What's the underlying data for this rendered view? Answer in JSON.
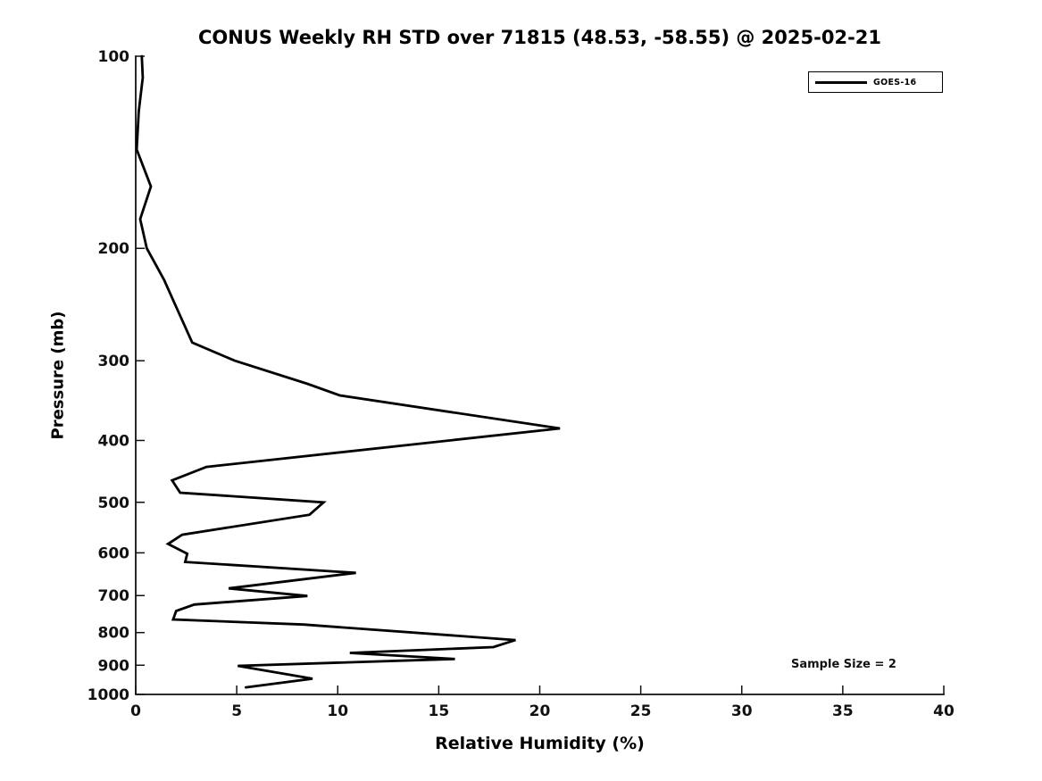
{
  "title": "CONUS Weekly RH STD over 71815 (48.53, -58.55) @ 2025-02-21",
  "axes": {
    "x": {
      "label": "Relative Humidity (%)",
      "min": 0,
      "max": 40,
      "ticks": [
        0,
        5,
        10,
        15,
        20,
        25,
        30,
        35,
        40
      ]
    },
    "y": {
      "label": "Pressure (mb)",
      "scale": "log",
      "min": 100,
      "max": 1000,
      "ticks": [
        100,
        200,
        300,
        400,
        500,
        600,
        700,
        800,
        900,
        1000
      ]
    }
  },
  "legend": {
    "position": "upper right",
    "entries": [
      {
        "label": "GOES-16",
        "color": "#000000"
      }
    ]
  },
  "annotation": {
    "sample_size": "Sample Size = 2"
  },
  "chart_data": {
    "type": "line",
    "title": "CONUS Weekly RH STD over 71815 (48.53, -58.55) @ 2025-02-21",
    "xlabel": "Relative Humidity (%)",
    "ylabel": "Pressure (mb)",
    "xlim": [
      0,
      40
    ],
    "y_scale": "log",
    "ylim": [
      1000,
      100
    ],
    "grid": false,
    "legend_position": "upper right",
    "line_color": "#000000",
    "line_width": 2.8,
    "series": [
      {
        "name": "GOES-16",
        "color": "#000000",
        "points_format": "[rh_std_percent, pressure_mb]",
        "points": [
          [
            0.3,
            100
          ],
          [
            0.35,
            108
          ],
          [
            0.15,
            122
          ],
          [
            0.05,
            140
          ],
          [
            0.75,
            160
          ],
          [
            0.22,
            180
          ],
          [
            0.55,
            200
          ],
          [
            1.4,
            224
          ],
          [
            1.9,
            243
          ],
          [
            2.8,
            281
          ],
          [
            4.9,
            300
          ],
          [
            8.5,
            326
          ],
          [
            10.1,
            340
          ],
          [
            21.0,
            383
          ],
          [
            3.5,
            440
          ],
          [
            1.8,
            462
          ],
          [
            2.2,
            483
          ],
          [
            9.3,
            500
          ],
          [
            8.6,
            523
          ],
          [
            2.3,
            562
          ],
          [
            1.6,
            581
          ],
          [
            2.55,
            602
          ],
          [
            2.45,
            620
          ],
          [
            10.9,
            645
          ],
          [
            4.6,
            682
          ],
          [
            8.5,
            701
          ],
          [
            2.9,
            723
          ],
          [
            2.0,
            740
          ],
          [
            1.85,
            763
          ],
          [
            8.3,
            777
          ],
          [
            18.8,
            822
          ],
          [
            17.7,
            843
          ],
          [
            10.6,
            861
          ],
          [
            15.8,
            880
          ],
          [
            5.05,
            902
          ],
          [
            8.75,
            945
          ],
          [
            5.45,
            975
          ]
        ]
      }
    ]
  }
}
